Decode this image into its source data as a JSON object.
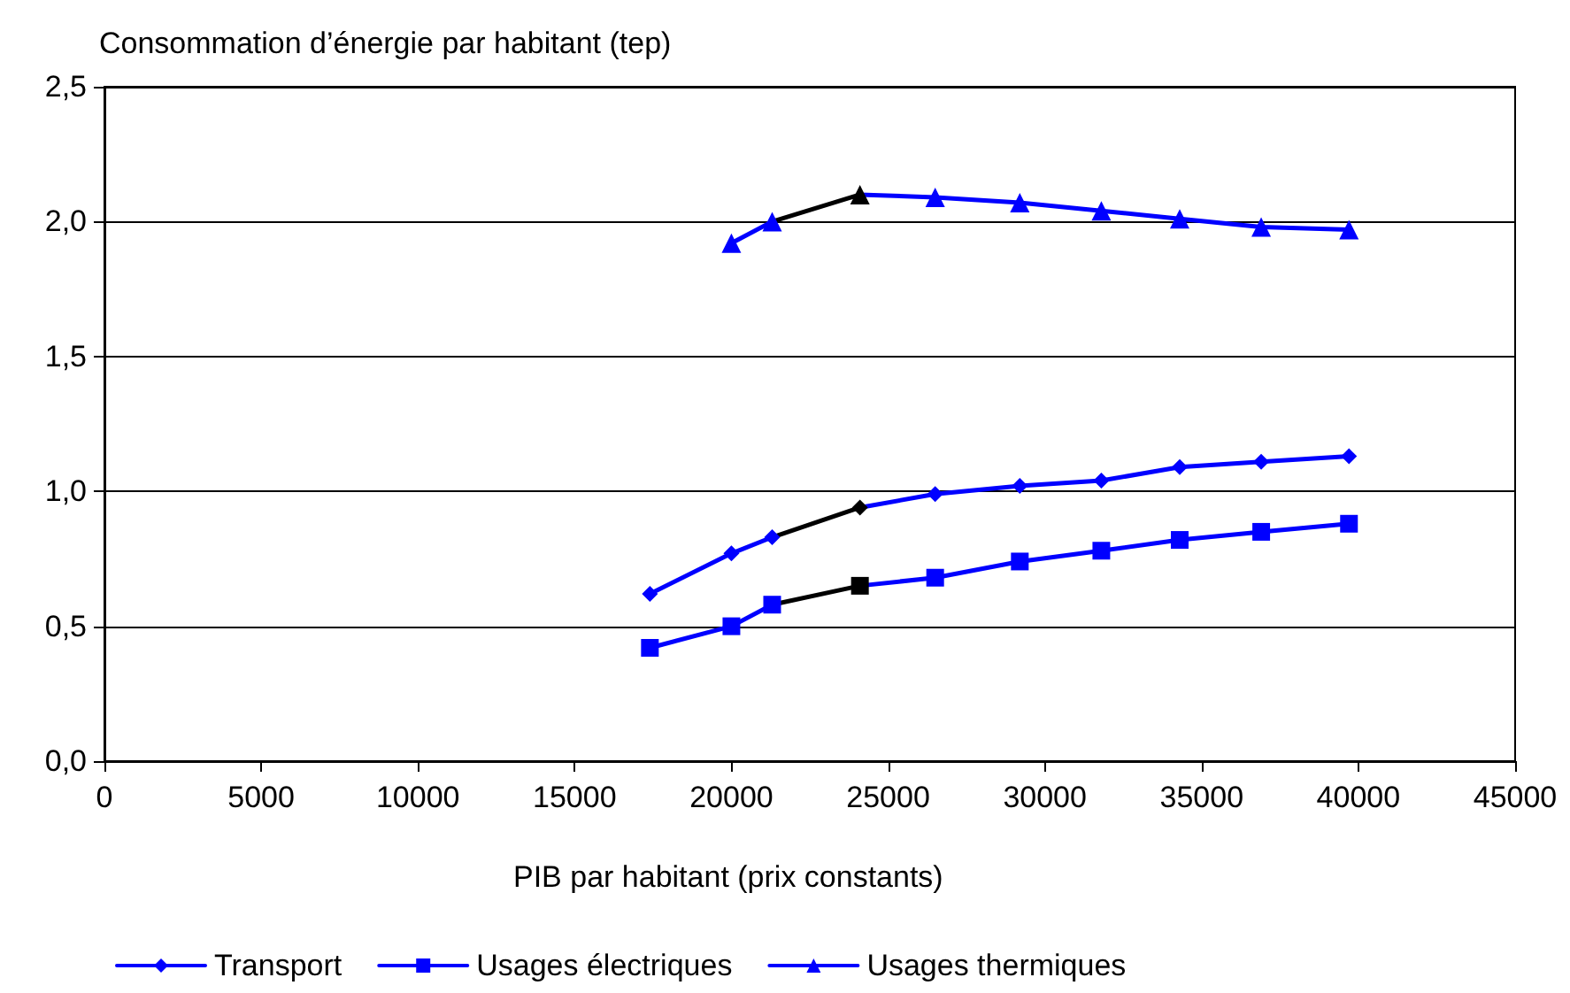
{
  "chart_data": {
    "type": "line",
    "ylabel": "Consommation d’énergie par habitant (tep)",
    "xlabel": "PIB par habitant (prix constants)",
    "xlim": [
      0,
      45000
    ],
    "xticks": [
      0,
      5000,
      10000,
      15000,
      20000,
      25000,
      30000,
      35000,
      40000,
      45000
    ],
    "ylim": [
      0,
      2.5
    ],
    "yticks": [
      {
        "value": 0,
        "label": "0,0"
      },
      {
        "value": 0.5,
        "label": "0,5"
      },
      {
        "value": 1,
        "label": "1,0"
      },
      {
        "value": 1.5,
        "label": "1,5"
      },
      {
        "value": 2,
        "label": "2,0"
      },
      {
        "value": 2.5,
        "label": "2,5"
      }
    ],
    "grid": "y",
    "legend": "bottom",
    "line_style": "solid",
    "series": [
      {
        "name": "Transport",
        "color": "#0000ff",
        "marker": "diamond",
        "x": [
          17400,
          20000,
          21300,
          24100,
          26500,
          29200,
          31800,
          34300,
          36900,
          39700
        ],
        "values": [
          0.62,
          0.77,
          0.83,
          0.94,
          0.99,
          1.02,
          1.04,
          1.09,
          1.11,
          1.13
        ],
        "colors": [
          "#0000ff",
          "#0000ff",
          "#0000ff",
          "#000000",
          "#0000ff",
          "#0000ff",
          "#0000ff",
          "#0000ff",
          "#0000ff",
          "#0000ff"
        ]
      },
      {
        "name": "Usages électriques",
        "color": "#0000ff",
        "marker": "square",
        "x": [
          17400,
          20000,
          21300,
          24100,
          26500,
          29200,
          31800,
          34300,
          36900,
          39700
        ],
        "values": [
          0.42,
          0.5,
          0.58,
          0.65,
          0.68,
          0.74,
          0.78,
          0.82,
          0.85,
          0.88
        ],
        "colors": [
          "#0000ff",
          "#0000ff",
          "#0000ff",
          "#000000",
          "#0000ff",
          "#0000ff",
          "#0000ff",
          "#0000ff",
          "#0000ff",
          "#0000ff"
        ]
      },
      {
        "name": "Usages thermiques",
        "color": "#0000ff",
        "marker": "triangle",
        "x": [
          20000,
          21300,
          24100,
          26500,
          29200,
          31800,
          34300,
          36900,
          39700
        ],
        "values": [
          1.92,
          2.0,
          2.1,
          2.09,
          2.07,
          2.04,
          2.01,
          1.98,
          1.97
        ],
        "colors": [
          "#0000ff",
          "#0000ff",
          "#000000",
          "#0000ff",
          "#0000ff",
          "#0000ff",
          "#0000ff",
          "#0000ff",
          "#0000ff"
        ]
      }
    ]
  }
}
